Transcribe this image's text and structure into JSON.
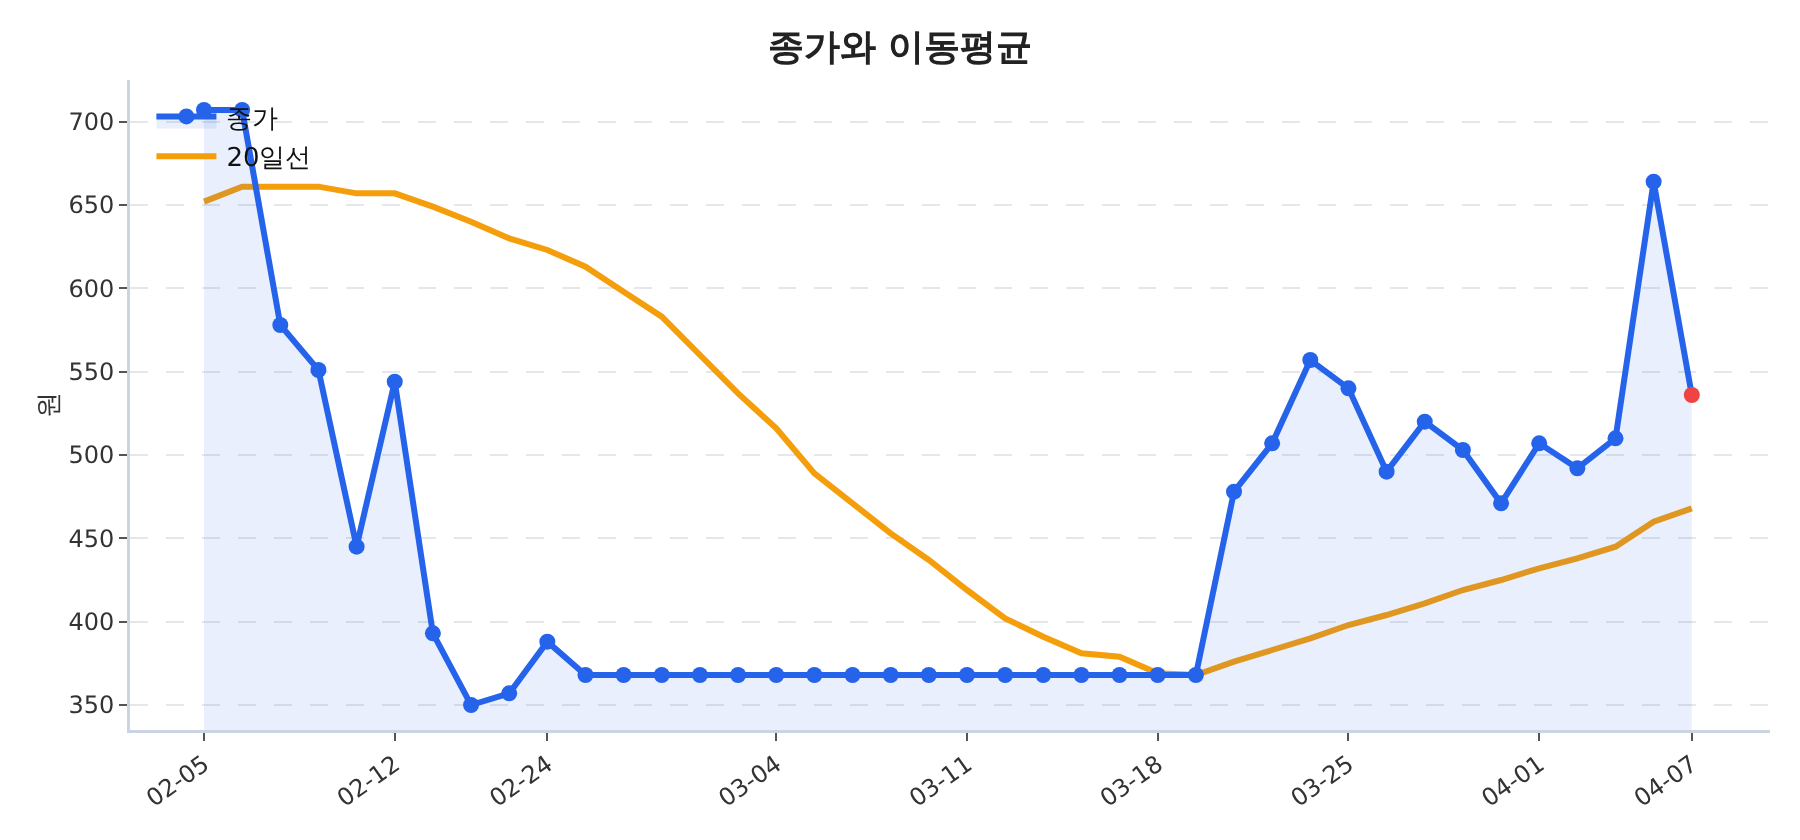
{
  "chart_data": {
    "type": "line",
    "title": "종가와 이동평균",
    "ylabel": "원",
    "categories": [
      "02-05",
      null,
      null,
      null,
      null,
      "02-12",
      null,
      null,
      null,
      "02-24",
      null,
      null,
      null,
      null,
      null,
      "03-04",
      null,
      null,
      null,
      null,
      "03-11",
      null,
      null,
      null,
      null,
      "03-18",
      null,
      null,
      null,
      null,
      "03-25",
      null,
      null,
      null,
      null,
      "04-01",
      null,
      null,
      null,
      "04-07"
    ],
    "series": [
      {
        "name": "종가",
        "type": "area",
        "color": "#2563eb",
        "marker": "circle",
        "colors": [
          "#2563eb",
          "#2563eb",
          "#2563eb",
          "#2563eb",
          "#2563eb",
          "#2563eb",
          "#2563eb",
          "#2563eb",
          "#2563eb",
          "#2563eb",
          "#2563eb",
          "#2563eb",
          "#2563eb",
          "#2563eb",
          "#2563eb",
          "#2563eb",
          "#2563eb",
          "#2563eb",
          "#2563eb",
          "#2563eb",
          "#2563eb",
          "#2563eb",
          "#2563eb",
          "#2563eb",
          "#2563eb",
          "#2563eb",
          "#2563eb",
          "#2563eb",
          "#2563eb",
          "#2563eb",
          "#2563eb",
          "#2563eb",
          "#2563eb",
          "#2563eb",
          "#2563eb",
          "#2563eb",
          "#2563eb",
          "#2563eb",
          "#2563eb",
          "#ef4444"
        ],
        "values": [
          707,
          707,
          578,
          551,
          445,
          544,
          393,
          350,
          357,
          388,
          368,
          368,
          368,
          368,
          368,
          368,
          368,
          368,
          368,
          368,
          368,
          368,
          368,
          368,
          368,
          368,
          368,
          478,
          507,
          557,
          540,
          490,
          520,
          503,
          471,
          507,
          492,
          510,
          664,
          536
        ]
      },
      {
        "name": "20일선",
        "color": "#f59e0b",
        "marker": "none",
        "values": [
          652,
          661,
          661,
          661,
          657,
          657,
          649,
          640,
          630,
          623,
          613,
          598,
          583,
          560,
          537,
          516,
          489,
          471,
          453,
          437,
          419,
          402,
          391,
          381,
          379,
          369,
          368,
          376,
          383,
          390,
          398,
          404,
          411,
          419,
          425,
          432,
          438,
          445,
          460,
          468
        ]
      }
    ],
    "ylim": [
      335,
      725
    ],
    "yticks": [
      350,
      400,
      450,
      500,
      550,
      600,
      650,
      700
    ],
    "grid": "y",
    "legend": "top left"
  }
}
